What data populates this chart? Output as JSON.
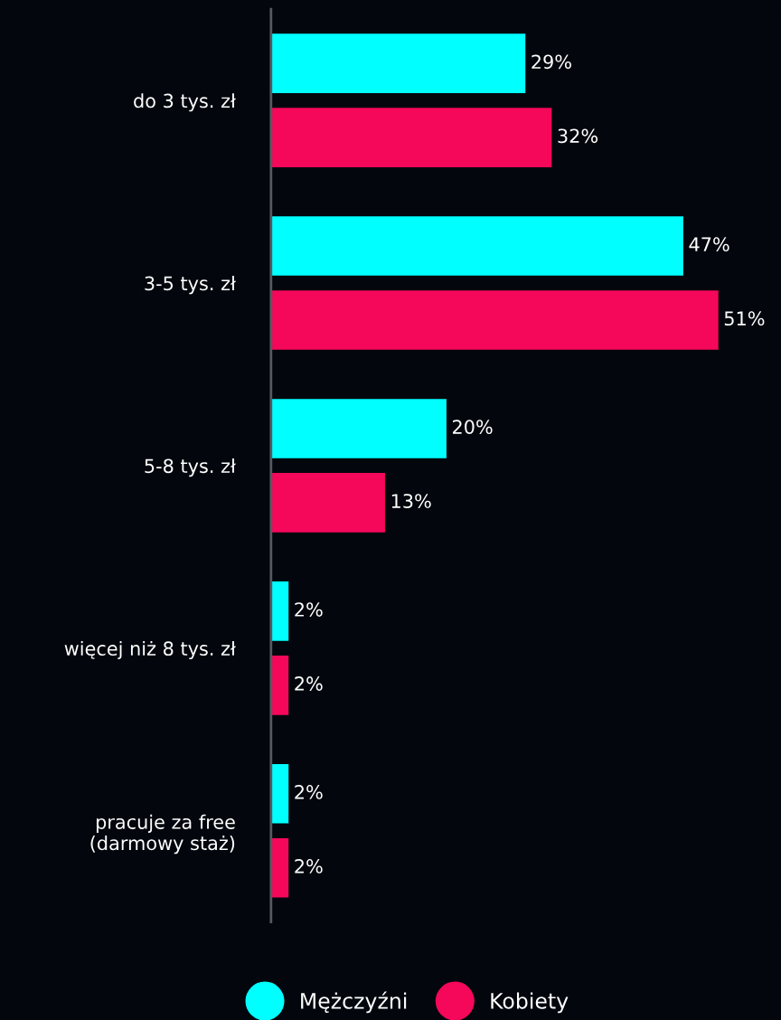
{
  "chart_data": {
    "type": "bar",
    "orientation": "horizontal",
    "categories": [
      "do 3 tys. zł",
      "3-5 tys. zł",
      "5-8 tys. zł",
      "więcej niż 8 tys. zł",
      "pracuje za free\n(darmowy staż)"
    ],
    "series": [
      {
        "name": "Mężczyźni",
        "color": "#00ffff",
        "values": [
          29,
          47,
          20,
          2,
          2
        ],
        "value_labels": [
          "29%",
          "47%",
          "20%",
          "2%",
          "2%"
        ]
      },
      {
        "name": "Kobiety",
        "color": "#f5075a",
        "values": [
          32,
          51,
          13,
          2,
          2
        ],
        "value_labels": [
          "32%",
          "51%",
          "13%",
          "2%",
          "2%"
        ]
      }
    ],
    "tick_labels": "y",
    "grid": false,
    "legend": "bottom",
    "marker": "circle"
  }
}
